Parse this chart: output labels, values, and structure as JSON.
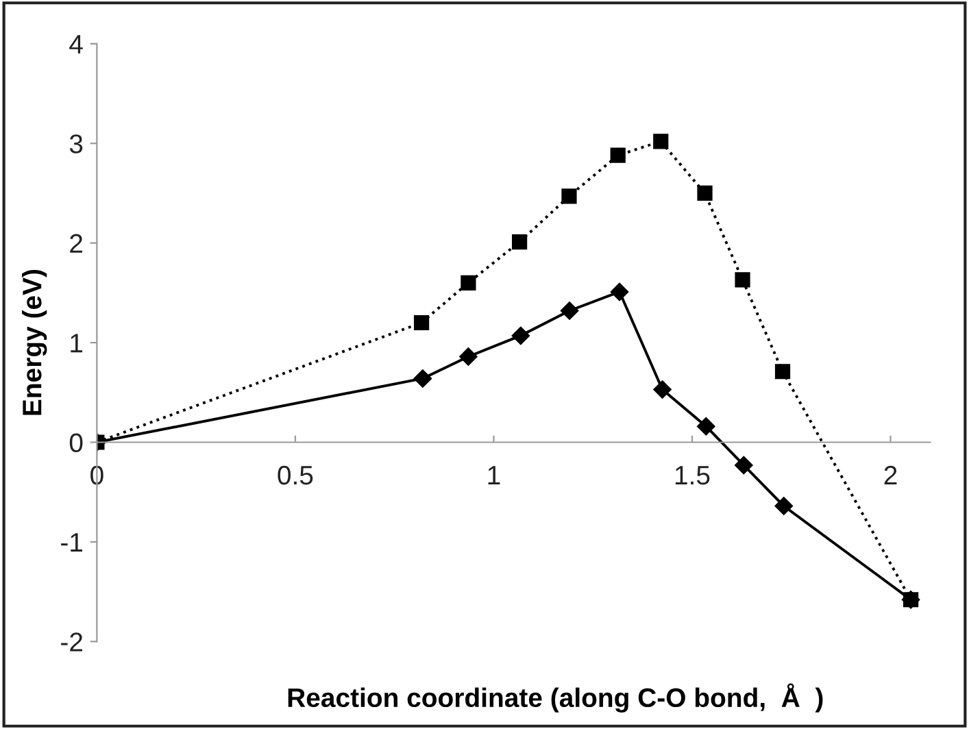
{
  "chart_data": {
    "type": "line",
    "xlabel": "Reaction coordinate (along C-O bond,  Å  )",
    "ylabel": "Energy (eV)",
    "xlim": [
      0,
      2.1
    ],
    "ylim": [
      -2,
      4
    ],
    "xticks": [
      0,
      0.5,
      1,
      1.5,
      2
    ],
    "yticks": [
      -2,
      -1,
      0,
      1,
      2,
      3,
      4
    ],
    "grid": false,
    "legend": false,
    "series": [
      {
        "color": "#000000",
        "marker": "diamond",
        "line_style": "solid",
        "x": [
          0,
          0.821,
          0.936,
          1.068,
          1.191,
          1.317,
          1.425,
          1.535,
          1.63,
          1.731,
          2.051
        ],
        "values": [
          0,
          0.64,
          0.86,
          1.07,
          1.32,
          1.51,
          0.53,
          0.16,
          -0.23,
          -0.64,
          -1.58
        ]
      },
      {
        "color": "#000000",
        "marker": "square",
        "line_style": "dotted",
        "x": [
          0,
          0.818,
          0.936,
          1.065,
          1.19,
          1.313,
          1.421,
          1.532,
          1.627,
          1.728,
          2.051
        ],
        "values": [
          0,
          1.2,
          1.6,
          2.01,
          2.47,
          2.88,
          3.02,
          2.5,
          1.63,
          0.71,
          -1.58
        ]
      }
    ]
  }
}
